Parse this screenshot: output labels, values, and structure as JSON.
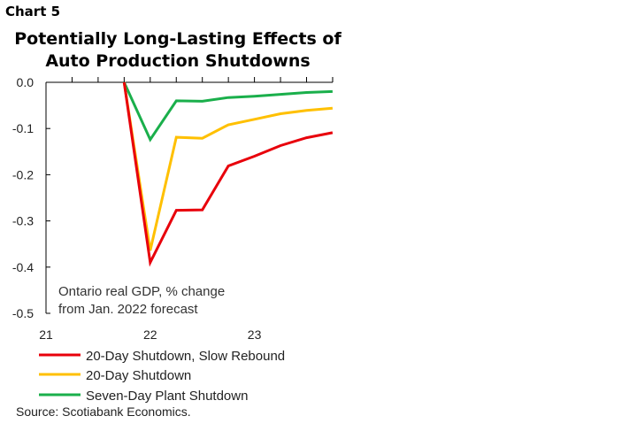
{
  "chart_label": "Chart 5",
  "title_line1": "Potentially Long-Lasting Effects of",
  "title_line2": "Auto Production Shutdowns",
  "source": "Source: Scotiabank Economics.",
  "colors": {
    "slow_rebound": "#e8000b",
    "shutdown_20": "#ffc000",
    "seven_day": "#1aaf4b"
  },
  "chart_data": {
    "type": "line",
    "title": "Potentially Long-Lasting Effects of Auto Production Shutdowns",
    "xlabel": "",
    "ylabel": "",
    "annotation_line1": "Ontario real GDP, % change",
    "annotation_line2": "from Jan. 2022 forecast",
    "ylim": [
      -0.5,
      0.0
    ],
    "y_ticks": [
      "0.0",
      "-0.1",
      "-0.2",
      "-0.3",
      "-0.4",
      "-0.5"
    ],
    "x_ticks": [
      "21",
      "22",
      "23"
    ],
    "x_quarters": [
      "21Q1",
      "21Q2",
      "21Q3",
      "21Q4",
      "22Q1",
      "22Q2",
      "22Q3",
      "22Q4",
      "23Q1",
      "23Q2",
      "23Q3",
      "23Q4"
    ],
    "grid": false,
    "legend_position": "bottom",
    "series": [
      {
        "name": "20-Day Shutdown, Slow Rebound",
        "color_key": "slow_rebound",
        "x": [
          "21Q4",
          "22Q1",
          "22Q2",
          "22Q3",
          "22Q4",
          "23Q1",
          "23Q2",
          "23Q3",
          "23Q4"
        ],
        "values": [
          0.0,
          -0.39,
          -0.277,
          -0.276,
          -0.181,
          -0.16,
          -0.137,
          -0.12,
          -0.109
        ]
      },
      {
        "name": "20-Day Shutdown",
        "color_key": "shutdown_20",
        "x": [
          "21Q4",
          "22Q1",
          "22Q2",
          "22Q3",
          "22Q4",
          "23Q1",
          "23Q2",
          "23Q3",
          "23Q4"
        ],
        "values": [
          0.0,
          -0.364,
          -0.119,
          -0.121,
          -0.092,
          -0.08,
          -0.068,
          -0.061,
          -0.056
        ]
      },
      {
        "name": "Seven-Day Plant Shutdown",
        "color_key": "seven_day",
        "x": [
          "21Q4",
          "22Q1",
          "22Q2",
          "22Q3",
          "22Q4",
          "23Q1",
          "23Q2",
          "23Q3",
          "23Q4"
        ],
        "values": [
          0.0,
          -0.124,
          -0.04,
          -0.041,
          -0.033,
          -0.03,
          -0.026,
          -0.022,
          -0.02
        ]
      }
    ]
  }
}
